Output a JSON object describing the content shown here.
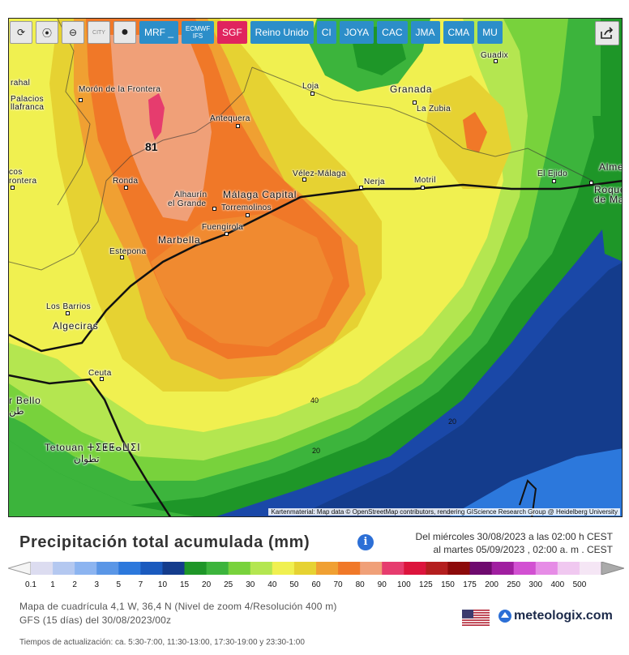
{
  "toolbar": {
    "buttons": [
      {
        "name": "refresh-icon",
        "glyph": "⟳"
      },
      {
        "name": "location-pin-icon",
        "glyph": "⦿"
      },
      {
        "name": "zoom-icon",
        "glyph": "⊖"
      },
      {
        "name": "city-toggle-icon",
        "glyph": "CITY"
      },
      {
        "name": "point-marker-icon",
        "glyph": "●"
      }
    ],
    "models": [
      "MRF _",
      "ECMWF IFS",
      "SGF",
      "Reino Unido",
      "CI",
      "JOYA",
      "CAC",
      "JMA",
      "CMA",
      "MU"
    ],
    "active_model": "SGF",
    "share_icon": "share-icon"
  },
  "map": {
    "cities": {
      "moron": "Morón de la Frontera",
      "palacios": "Palacios",
      "villafranca": "llafranca",
      "arahal": "rahal",
      "ronda": "Ronda",
      "antequera": "Antequera",
      "loja": "Loja",
      "granada": "Granada",
      "guadix": "Guadix",
      "la_zubia": "La Zubia",
      "velez": "Vélez-Málaga",
      "nerja": "Nerja",
      "motril": "Motril",
      "el_ejido": "El Ejido",
      "almeria": "Alme",
      "roquetas": "Roque",
      "roquetas2": "de Ma",
      "malaga": "Málaga Capital",
      "alhaurin": "Alhaurín",
      "alhaurin2": "el Grande",
      "torremolinos": "Torremolinos",
      "fuengirola": "Fuengirola",
      "marbella": "Marbella",
      "estepona": "Estepona",
      "los_barrios": "Los Barrios",
      "algeciras": "Algeciras",
      "ceuta": "Ceuta",
      "arcos": "cos",
      "arcos2": "rontera",
      "tetouan": "Tetouan ⵜⵉⵟⵟⴰⵡⵉⵏ",
      "tetouan_ar": "تطوان",
      "rbello": "r Bello",
      "rbello_ar": "طن"
    },
    "max_value": "81",
    "isolines": [
      "40",
      "20",
      "20",
      "20"
    ],
    "attribution": "Kartenmaterial: Map data © OpenStreetMap contributors, rendering GIScience Research Group @ Heidelberg University"
  },
  "panel": {
    "title": "Precipitación total acumulada (mm)",
    "info_icon": "ⅰ",
    "date_line1": "Del miércoles 30/08/2023 a  las 02:00 h  CEST",
    "date_line2": "al martes 05/09/2023 ,  02:00 a. m . CEST",
    "meta_line1": "Mapa de cuadrícula 4,1 W, 36,4 N  (Nivel de zoom 4/Resolución 400 m)",
    "meta_line2": "GFS  (15 días)  del 30/08/2023/00z",
    "update_times": "Tiempos de actualización: ca. 5:30-7:00, 11:30-13:00, 17:30-19:00 y 23:30-1:00",
    "brand": "meteologix.com"
  },
  "legend": {
    "labels": [
      "0.1",
      "1",
      "2",
      "3",
      "5",
      "7",
      "10",
      "15",
      "20",
      "25",
      "30",
      "40",
      "50",
      "60",
      "70",
      "80",
      "90",
      "100",
      "125",
      "150",
      "175",
      "200",
      "250",
      "300",
      "400",
      "500"
    ],
    "colors": [
      "#dcdcf0",
      "#b4c8f0",
      "#8cb4f0",
      "#5a96e6",
      "#2c78dc",
      "#1a5abe",
      "#143c8c",
      "#1e9628",
      "#3cb43c",
      "#78d23c",
      "#b4e650",
      "#f0f050",
      "#e6d232",
      "#f0a032",
      "#f07828",
      "#f0a078",
      "#e63c6e",
      "#dc143c",
      "#b41e1e",
      "#8c0a0a",
      "#6e0a6e",
      "#a01ea0",
      "#d250d2",
      "#e68ce6",
      "#f0c8f0",
      "#f5e6f5"
    ]
  }
}
